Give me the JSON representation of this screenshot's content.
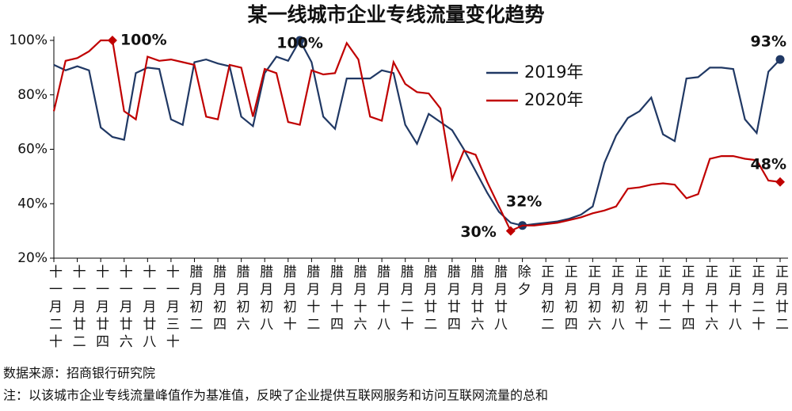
{
  "chart_data": {
    "type": "line",
    "title": "某一线城市企业专线流量变化趋势",
    "categories": [
      "十一月二十",
      null,
      "十一月廿二",
      null,
      "十一月廿四",
      null,
      "十一月廿六",
      null,
      "十一月廿八",
      null,
      "十一月三十",
      null,
      "腊月初二",
      null,
      "腊月初四",
      null,
      "腊月初六",
      null,
      "腊月初八",
      null,
      "腊月初十",
      null,
      "腊月十二",
      null,
      "腊月十四",
      null,
      "腊月十六",
      null,
      "腊月十八",
      null,
      "腊月二十",
      null,
      "腊月廿二",
      null,
      "腊月廿四",
      null,
      "腊月廿六",
      null,
      "腊月廿八",
      null,
      "除夕",
      null,
      "正月初二",
      null,
      "正月初四",
      null,
      "正月初六",
      null,
      "正月初八",
      null,
      "正月初十",
      null,
      "正月十二",
      null,
      "正月十四",
      null,
      "正月十六",
      null,
      "正月十八",
      null,
      "正月二十",
      null,
      "正月廿二"
    ],
    "series": [
      {
        "name": "2019年",
        "color": "#203864",
        "marker": "circle",
        "values": [
          91,
          89,
          90.5,
          89,
          68,
          64.5,
          63.5,
          88,
          90,
          89.5,
          71,
          69,
          92,
          93,
          91.5,
          90.5,
          72,
          68.5,
          88,
          94,
          92.5,
          100,
          92,
          72,
          67.5,
          86,
          86,
          86,
          89,
          88,
          69,
          62,
          73,
          70,
          67,
          60,
          52,
          44,
          37,
          33,
          32,
          32.5,
          33,
          33.5,
          34.5,
          36,
          39,
          55,
          65,
          71.5,
          74,
          79,
          65.5,
          63,
          86,
          86.5,
          90,
          90,
          89.5,
          71,
          66,
          88.5,
          93
        ],
        "value_labels": [
          null,
          null,
          null,
          null,
          null,
          null,
          null,
          null,
          null,
          null,
          null,
          null,
          null,
          null,
          null,
          null,
          null,
          null,
          null,
          null,
          null,
          "100%",
          null,
          null,
          null,
          null,
          null,
          null,
          null,
          null,
          null,
          null,
          null,
          null,
          null,
          null,
          null,
          null,
          null,
          null,
          "32%",
          null,
          null,
          null,
          null,
          null,
          null,
          null,
          null,
          null,
          null,
          null,
          null,
          null,
          null,
          null,
          null,
          null,
          null,
          null,
          null,
          null,
          "93%"
        ]
      },
      {
        "name": "2020年",
        "color": "#c00000",
        "marker": "diamond",
        "values": [
          74,
          92.5,
          93.5,
          96,
          100,
          100,
          74,
          71,
          94,
          92.5,
          93,
          92,
          91,
          72,
          71,
          91,
          90,
          72,
          89.5,
          88,
          70,
          69,
          89,
          87.5,
          88,
          99,
          93,
          72,
          70.5,
          92,
          84,
          81,
          80.5,
          75,
          49,
          59.5,
          58,
          48,
          39,
          30,
          32,
          32,
          32.5,
          33,
          34,
          35,
          36.5,
          37.5,
          39,
          45.5,
          46,
          47,
          47.5,
          47,
          42,
          43.5,
          56.5,
          57.5,
          57.5,
          56.5,
          56,
          48.5,
          48
        ],
        "value_labels": [
          null,
          null,
          null,
          null,
          null,
          "100%",
          null,
          null,
          null,
          null,
          null,
          null,
          null,
          null,
          null,
          null,
          null,
          null,
          null,
          null,
          null,
          null,
          null,
          null,
          null,
          null,
          null,
          null,
          null,
          null,
          null,
          null,
          null,
          null,
          null,
          null,
          null,
          null,
          null,
          "30%",
          null,
          null,
          null,
          null,
          null,
          null,
          null,
          null,
          null,
          null,
          null,
          null,
          null,
          null,
          null,
          null,
          null,
          null,
          null,
          null,
          null,
          null,
          "48%"
        ]
      }
    ],
    "ylim": [
      20,
      100
    ],
    "yticks": [
      {
        "value": 20,
        "label": "20%"
      },
      {
        "value": 40,
        "label": "40%"
      },
      {
        "value": 60,
        "label": "60%"
      },
      {
        "value": 80,
        "label": "80%"
      },
      {
        "value": 100,
        "label": "100%"
      }
    ],
    "grid": false,
    "legend": "upper right",
    "notes": [
      "数据来源：招商银行研究院",
      "注：以该城市企业专线流量峰值作为基准值，反映了企业提供互联网服务和访问互联网流量的总和"
    ]
  }
}
